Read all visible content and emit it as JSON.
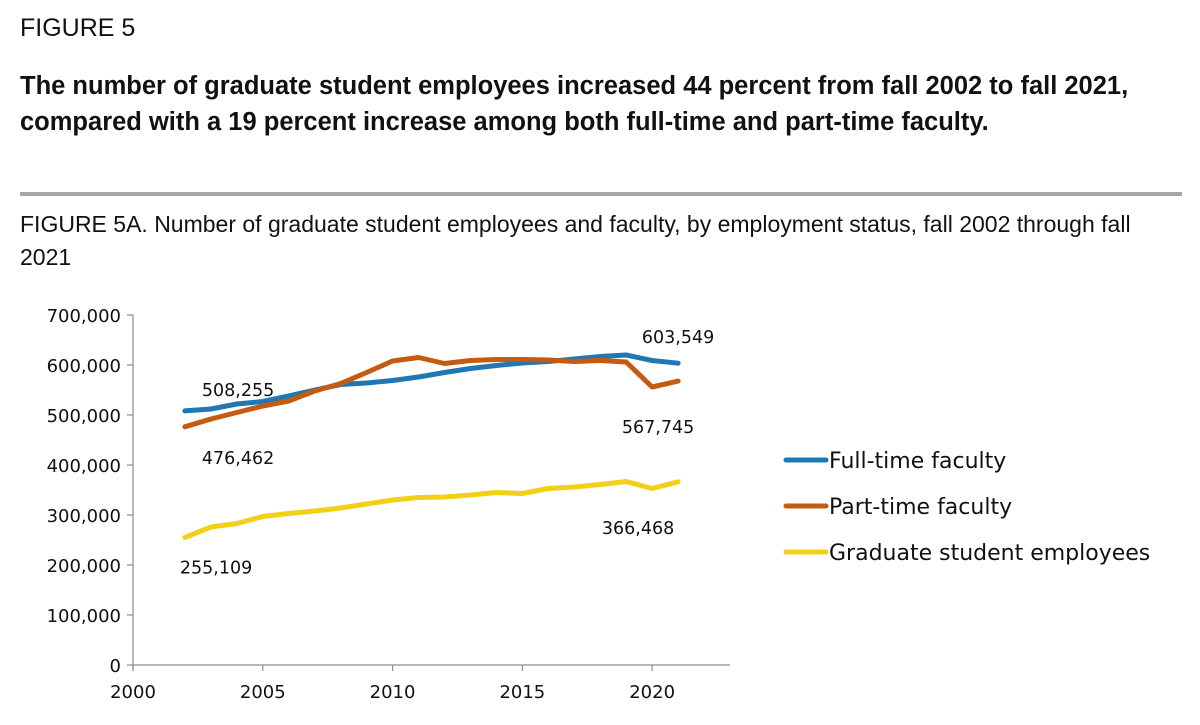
{
  "figure_label": "FIGURE 5",
  "headline": "The number of graduate student employees increased 44 percent from fall 2002 to fall 2021, compared with a 19 percent increase among both full-time and part-time faculty.",
  "chart_data": {
    "type": "line",
    "title": "FIGURE 5A. Number of graduate student employees and faculty, by employment status, fall 2002 through fall 2021",
    "xlim": [
      2000,
      2023
    ],
    "ylim": [
      0,
      700000
    ],
    "x_ticks": [
      2000,
      2005,
      2010,
      2015,
      2020
    ],
    "y_ticks": [
      0,
      100000,
      200000,
      300000,
      400000,
      500000,
      600000,
      700000
    ],
    "y_tick_labels": [
      "0",
      "100,000",
      "200,000",
      "300,000",
      "400,000",
      "500,000",
      "600,000",
      "700,000"
    ],
    "grid": false,
    "legend_position": "right",
    "x": [
      2002,
      2003,
      2004,
      2005,
      2006,
      2007,
      2008,
      2009,
      2010,
      2011,
      2012,
      2013,
      2014,
      2015,
      2016,
      2017,
      2018,
      2019,
      2020,
      2021
    ],
    "series": [
      {
        "name": "Full-time faculty",
        "color": "#1f77b4",
        "values": [
          508255,
          512000,
          522000,
          527000,
          538000,
          550000,
          561000,
          564000,
          569000,
          576000,
          585000,
          593000,
          599000,
          604000,
          607000,
          612000,
          617000,
          620000,
          609000,
          603549
        ]
      },
      {
        "name": "Part-time faculty",
        "color": "#c55a11",
        "values": [
          476462,
          492000,
          505000,
          518000,
          528000,
          548000,
          563000,
          585000,
          608000,
          615000,
          603000,
          609000,
          611000,
          611000,
          610000,
          607000,
          609000,
          606000,
          556000,
          567745
        ]
      },
      {
        "name": "Graduate student employees",
        "color": "#f2d016",
        "values": [
          255109,
          276000,
          283000,
          297000,
          303000,
          308000,
          314000,
          322000,
          330000,
          335000,
          336000,
          340000,
          345000,
          343000,
          353000,
          356000,
          361000,
          367000,
          353000,
          366468
        ]
      }
    ],
    "data_labels": [
      {
        "text": "508,255",
        "series": 0,
        "point": "first"
      },
      {
        "text": "603,549",
        "series": 0,
        "point": "last"
      },
      {
        "text": "476,462",
        "series": 1,
        "point": "first"
      },
      {
        "text": "567,745",
        "series": 1,
        "point": "last"
      },
      {
        "text": "255,109",
        "series": 2,
        "point": "first"
      },
      {
        "text": "366,468",
        "series": 2,
        "point": "last"
      }
    ]
  }
}
